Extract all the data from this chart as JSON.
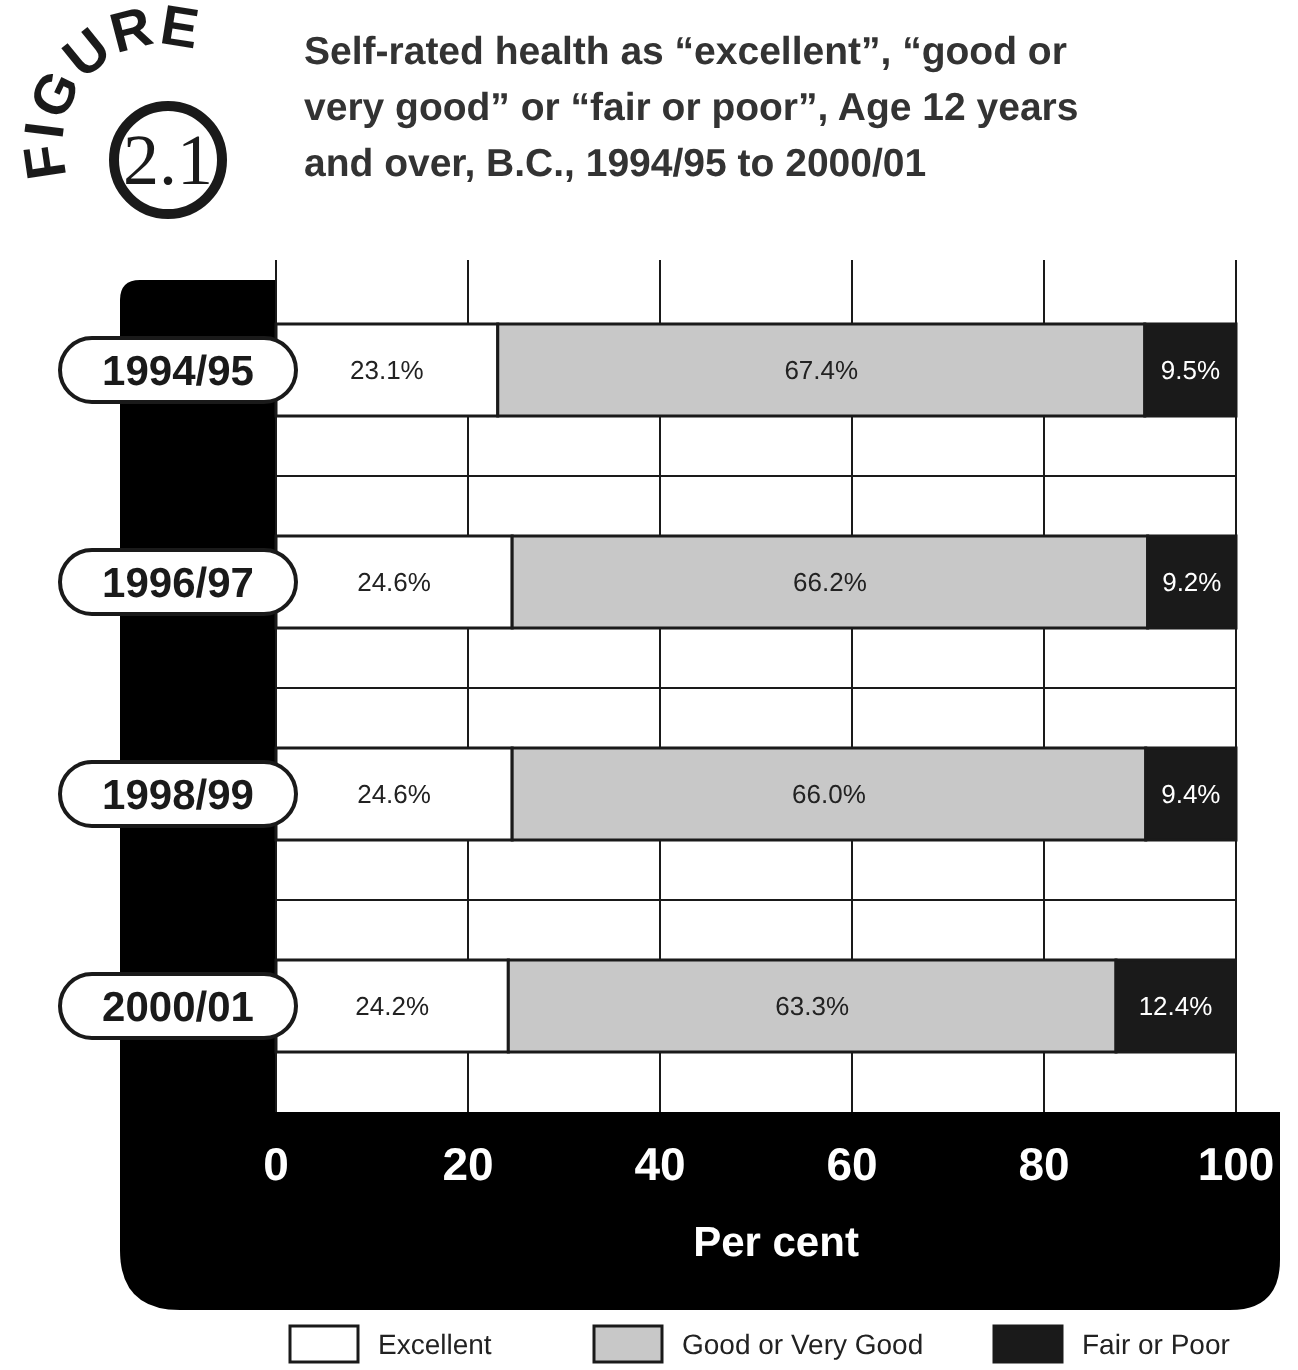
{
  "chart_data": {
    "type": "bar",
    "orientation": "horizontal",
    "stacked": true,
    "title": "Self-rated health as “excellent”, “good or very good” or “fair or poor”, Age 12 years and over, B.C., 1994/95 to 2000/01",
    "annotations": [
      "FIGURE",
      "2.1"
    ],
    "xlabel": "Per cent",
    "categories": [
      "1994/95",
      "1996/97",
      "1998/99",
      "2000/01"
    ],
    "series": [
      {
        "name": "Excellent",
        "color": "#ffffff",
        "values": [
          23.1,
          24.6,
          24.6,
          24.2
        ],
        "value_labels": [
          "23.1%",
          "24.6%",
          "24.6%",
          "24.2%"
        ]
      },
      {
        "name": "Good or Very Good",
        "color": "#c8c8c8",
        "values": [
          67.4,
          66.2,
          66.0,
          63.3
        ],
        "value_labels": [
          "67.4%",
          "66.2%",
          "66.0%",
          "63.3%"
        ]
      },
      {
        "name": "Fair or Poor",
        "color": "#1a1a1a",
        "values": [
          9.5,
          9.2,
          9.4,
          12.4
        ],
        "value_labels": [
          "9.5%",
          "9.2%",
          "9.4%",
          "12.4%"
        ]
      }
    ],
    "xlim": [
      0,
      100
    ],
    "xticks": [
      0,
      20,
      40,
      60,
      80,
      100
    ],
    "grid": true,
    "legend": "bottom"
  }
}
